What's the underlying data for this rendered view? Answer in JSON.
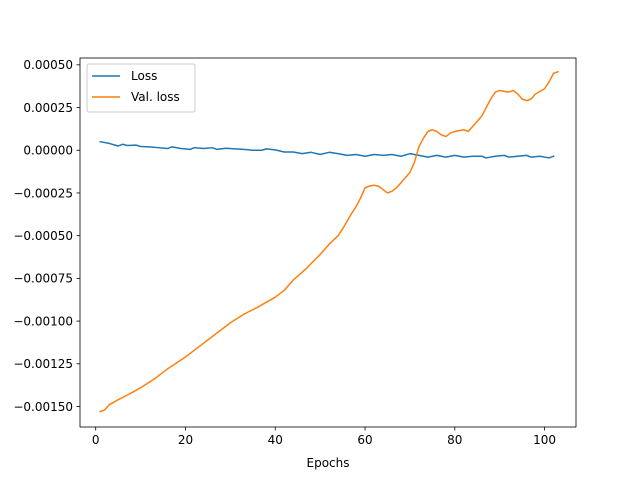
{
  "chart_data": {
    "type": "line",
    "title": "",
    "xlabel": "Epochs",
    "ylabel": "",
    "xlim": [
      -3.5,
      107
    ],
    "ylim": [
      -0.00162,
      0.00054
    ],
    "xticks": [
      0,
      20,
      40,
      60,
      80,
      100
    ],
    "xtick_labels": [
      "0",
      "20",
      "40",
      "60",
      "80",
      "100"
    ],
    "yticks": [
      -0.0015,
      -0.00125,
      -0.001,
      -0.00075,
      -0.0005,
      -0.00025,
      0.0,
      0.00025,
      0.0005
    ],
    "ytick_labels": [
      "−0.00150",
      "−0.00125",
      "−0.00100",
      "−0.00075",
      "−0.00050",
      "−0.00025",
      "0.00000",
      "0.00025",
      "0.00050"
    ],
    "grid": false,
    "legend_position": "top-left",
    "series": [
      {
        "name": "Loss",
        "color": "#1f77b4",
        "points": [
          [
            1,
            5e-05
          ],
          [
            3,
            4e-05
          ],
          [
            5,
            2.5e-05
          ],
          [
            6,
            3.5e-05
          ],
          [
            7,
            2.8e-05
          ],
          [
            9,
            3e-05
          ],
          [
            10,
            2.2e-05
          ],
          [
            12,
            2e-05
          ],
          [
            14,
            1.5e-05
          ],
          [
            16,
            1e-05
          ],
          [
            17,
            2e-05
          ],
          [
            19,
            1e-05
          ],
          [
            21,
            5e-06
          ],
          [
            22,
            1.5e-05
          ],
          [
            24,
            1e-05
          ],
          [
            26,
            1.5e-05
          ],
          [
            27,
            5e-06
          ],
          [
            29,
            1.2e-05
          ],
          [
            31,
            8e-06
          ],
          [
            33,
            5e-06
          ],
          [
            35,
            0.0
          ],
          [
            37,
            0.0
          ],
          [
            38,
            8e-06
          ],
          [
            40,
            2e-06
          ],
          [
            42,
            -1e-05
          ],
          [
            44,
            -1e-05
          ],
          [
            46,
            -2e-05
          ],
          [
            48,
            -1.2e-05
          ],
          [
            50,
            -2.5e-05
          ],
          [
            52,
            -1.2e-05
          ],
          [
            54,
            -2e-05
          ],
          [
            56,
            -3e-05
          ],
          [
            58,
            -2.5e-05
          ],
          [
            60,
            -3.5e-05
          ],
          [
            62,
            -2.5e-05
          ],
          [
            64,
            -3e-05
          ],
          [
            66,
            -2.5e-05
          ],
          [
            68,
            -3.5e-05
          ],
          [
            70,
            -2e-05
          ],
          [
            72,
            -3e-05
          ],
          [
            74,
            -4e-05
          ],
          [
            76,
            -3e-05
          ],
          [
            78,
            -4e-05
          ],
          [
            80,
            -3e-05
          ],
          [
            82,
            -4e-05
          ],
          [
            84,
            -3.5e-05
          ],
          [
            86,
            -3.5e-05
          ],
          [
            87,
            -4.5e-05
          ],
          [
            89,
            -3.5e-05
          ],
          [
            91,
            -3e-05
          ],
          [
            92,
            -4e-05
          ],
          [
            94,
            -3.5e-05
          ],
          [
            96,
            -3e-05
          ],
          [
            97,
            -4e-05
          ],
          [
            99,
            -3.5e-05
          ],
          [
            101,
            -4.5e-05
          ],
          [
            102,
            -3.5e-05
          ]
        ]
      },
      {
        "name": "Val. loss",
        "color": "#ff7f0e",
        "points": [
          [
            1,
            -0.00153
          ],
          [
            2,
            -0.00152
          ],
          [
            3,
            -0.00149
          ],
          [
            5,
            -0.00146
          ],
          [
            8,
            -0.00142
          ],
          [
            10,
            -0.00139
          ],
          [
            13,
            -0.00134
          ],
          [
            16,
            -0.00128
          ],
          [
            20,
            -0.00121
          ],
          [
            24,
            -0.00113
          ],
          [
            28,
            -0.00105
          ],
          [
            30,
            -0.00101
          ],
          [
            33,
            -0.00096
          ],
          [
            36,
            -0.00092
          ],
          [
            38,
            -0.00089
          ],
          [
            40,
            -0.00086
          ],
          [
            42,
            -0.00082
          ],
          [
            44,
            -0.00076
          ],
          [
            47,
            -0.00069
          ],
          [
            50,
            -0.00061
          ],
          [
            52,
            -0.00055
          ],
          [
            54,
            -0.0005
          ],
          [
            55,
            -0.00046
          ],
          [
            57,
            -0.00037
          ],
          [
            58,
            -0.00033
          ],
          [
            59,
            -0.00028
          ],
          [
            60,
            -0.00022
          ],
          [
            61,
            -0.00021
          ],
          [
            62,
            -0.000205
          ],
          [
            63,
            -0.00021
          ],
          [
            64,
            -0.00023
          ],
          [
            65,
            -0.00025
          ],
          [
            66,
            -0.00024
          ],
          [
            67,
            -0.00022
          ],
          [
            68,
            -0.00019
          ],
          [
            69,
            -0.00016
          ],
          [
            70,
            -0.00013
          ],
          [
            71,
            -7e-05
          ],
          [
            72,
            2e-05
          ],
          [
            73,
            7e-05
          ],
          [
            74,
            0.00011
          ],
          [
            75,
            0.00012
          ],
          [
            76,
            0.00011
          ],
          [
            77,
            9e-05
          ],
          [
            78,
            8e-05
          ],
          [
            79,
            0.0001
          ],
          [
            80,
            0.00011
          ],
          [
            82,
            0.00012
          ],
          [
            83,
            0.00011
          ],
          [
            84,
            0.00014
          ],
          [
            86,
            0.0002
          ],
          [
            88,
            0.0003
          ],
          [
            89,
            0.00034
          ],
          [
            90,
            0.00035
          ],
          [
            92,
            0.00034
          ],
          [
            93,
            0.00035
          ],
          [
            94,
            0.00033
          ],
          [
            95,
            0.0003
          ],
          [
            96,
            0.00029
          ],
          [
            97,
            0.0003
          ],
          [
            98,
            0.00033
          ],
          [
            100,
            0.00036
          ],
          [
            101,
            0.0004
          ],
          [
            102,
            0.00045
          ],
          [
            103,
            0.00046
          ]
        ]
      }
    ]
  }
}
